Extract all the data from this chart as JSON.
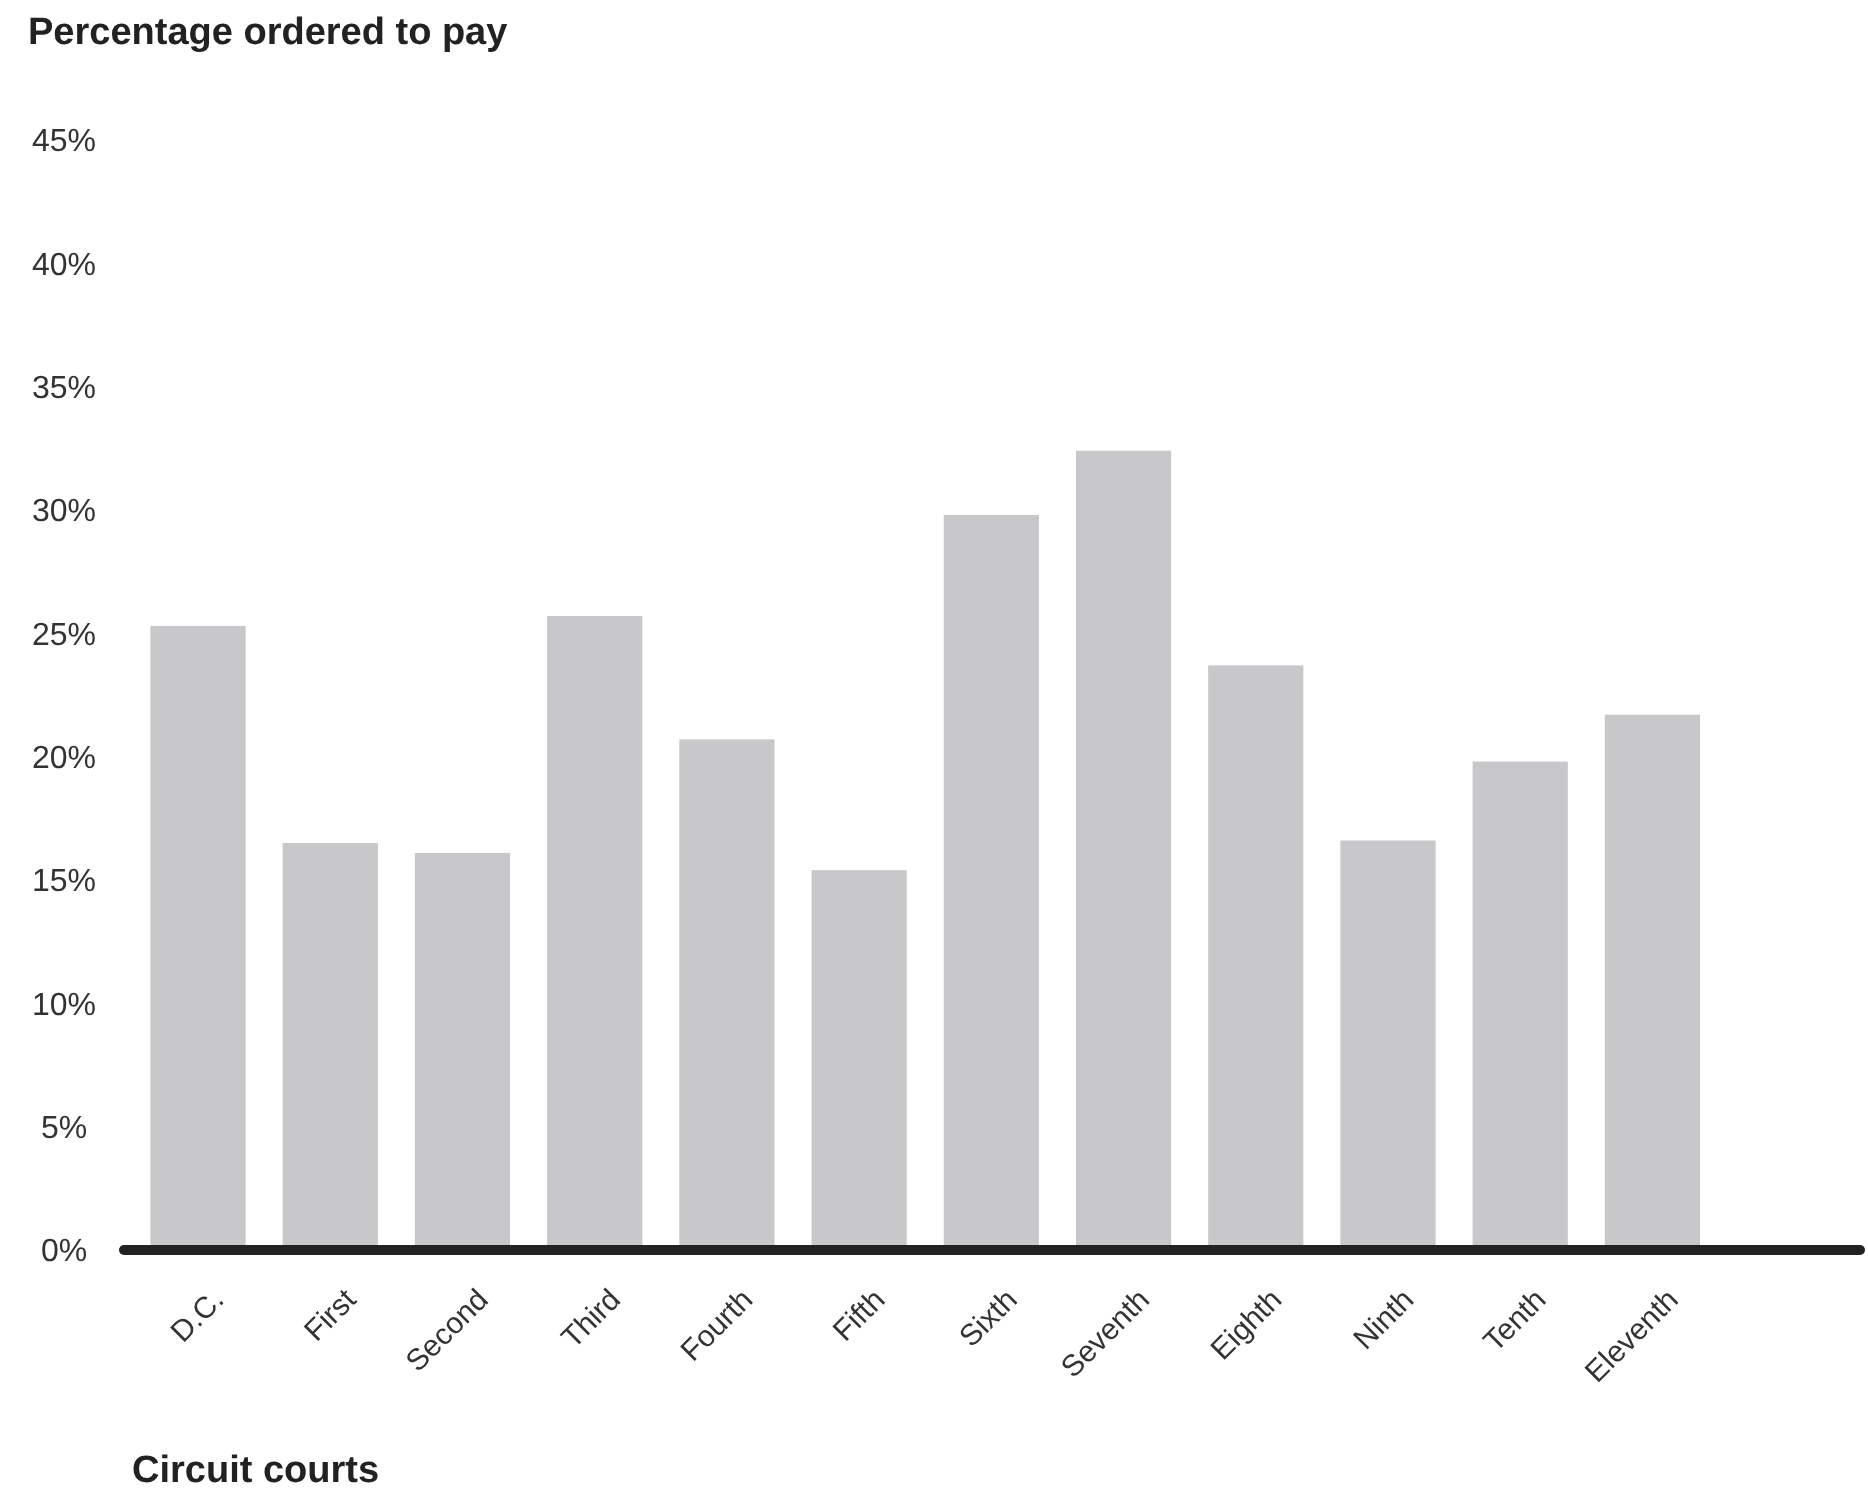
{
  "chart_data": {
    "type": "bar",
    "ylabel": "Percentage ordered to pay",
    "xlabel": "Circuit courts",
    "categories": [
      "D.C.",
      "First",
      "Second",
      "Third",
      "Fourth",
      "Fifth",
      "Sixth",
      "Seventh",
      "Eighth",
      "Ninth",
      "Tenth",
      "Eleventh"
    ],
    "values": [
      25.3,
      16.5,
      16.1,
      25.7,
      20.7,
      15.4,
      29.8,
      32.4,
      23.7,
      16.6,
      19.8,
      21.7
    ],
    "color": "#c8c8ca",
    "ylim": [
      0,
      45
    ],
    "yticks": [
      {
        "value": 0,
        "label": "0%"
      },
      {
        "value": 5,
        "label": "5%"
      },
      {
        "value": 10,
        "label": "10%"
      },
      {
        "value": 15,
        "label": "15%"
      },
      {
        "value": 20,
        "label": "20%"
      },
      {
        "value": 25,
        "label": "25%"
      },
      {
        "value": 30,
        "label": "30%"
      },
      {
        "value": 35,
        "label": "35%"
      },
      {
        "value": 40,
        "label": "40%"
      },
      {
        "value": 45,
        "label": "45%"
      }
    ],
    "grid": false
  }
}
